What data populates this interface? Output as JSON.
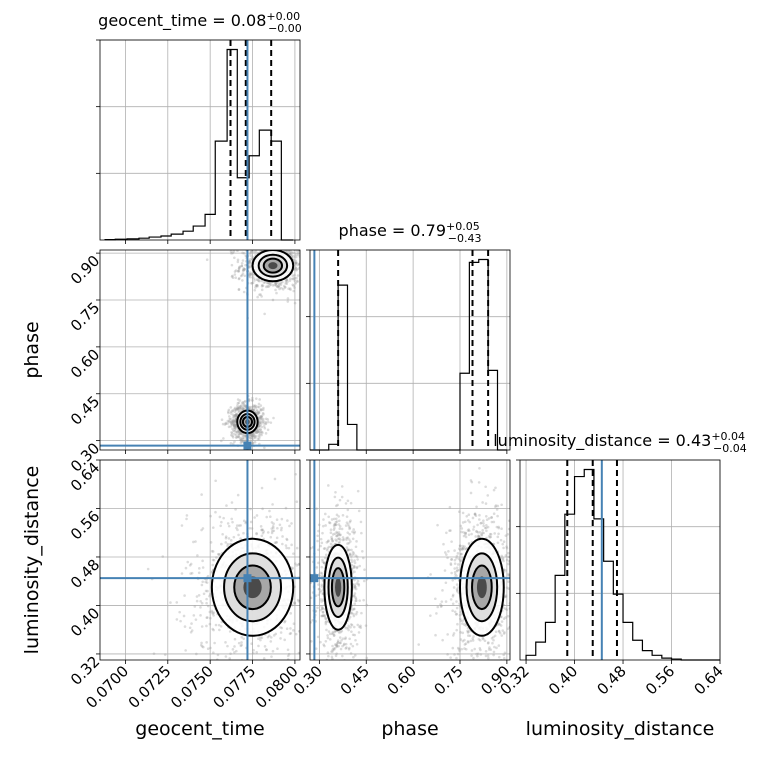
{
  "chart_data": {
    "type": "corner",
    "parameters": [
      "geocent_time",
      "phase",
      "luminosity_distance"
    ],
    "truths": {
      "geocent_time": 0.0772,
      "phase": 0.284,
      "luminosity_distance": 0.445
    },
    "marginals": [
      {
        "name": "geocent_time",
        "title": {
          "prefix": "geocent_time = 0.08",
          "plus": "+0.00",
          "minus": "−0.00"
        },
        "quantiles": [
          0.0762,
          0.0771,
          0.0786
        ],
        "bin_edges": [
          0.0688,
          0.0694,
          0.0701,
          0.0708,
          0.0714,
          0.0721,
          0.0727,
          0.0734,
          0.074,
          0.0747,
          0.0753,
          0.076,
          0.0766,
          0.0773,
          0.0779,
          0.0786,
          0.0792,
          0.0799
        ],
        "counts": [
          1,
          2,
          3,
          5,
          8,
          11,
          16,
          24,
          38,
          70,
          270,
          520,
          170,
          230,
          300,
          270,
          0
        ]
      },
      {
        "name": "phase",
        "title": {
          "prefix": "phase = 0.79",
          "plus": "+0.05",
          "minus": "−0.43"
        },
        "quantiles": [
          0.36,
          0.79,
          0.84
        ],
        "bin_edges": [
          0.27,
          0.3,
          0.33,
          0.36,
          0.39,
          0.42,
          0.45,
          0.48,
          0.51,
          0.54,
          0.57,
          0.6,
          0.63,
          0.66,
          0.69,
          0.72,
          0.75,
          0.78,
          0.81,
          0.84,
          0.87,
          0.9
        ],
        "counts": [
          0,
          0,
          10,
          290,
          45,
          0,
          0,
          0,
          0,
          0,
          0,
          0,
          0,
          0,
          0,
          0,
          135,
          330,
          335,
          140,
          0
        ]
      },
      {
        "name": "luminosity_distance",
        "title": {
          "prefix": "luminosity_distance = 0.43",
          "plus": "+0.04",
          "minus": "−0.04"
        },
        "quantiles": [
          0.388,
          0.43,
          0.47
        ],
        "bin_edges": [
          0.32,
          0.336,
          0.352,
          0.368,
          0.384,
          0.4,
          0.416,
          0.432,
          0.448,
          0.464,
          0.48,
          0.496,
          0.512,
          0.528,
          0.544,
          0.56,
          0.576,
          0.592,
          0.608,
          0.624,
          0.64
        ],
        "counts": [
          10,
          38,
          80,
          180,
          310,
          390,
          405,
          300,
          210,
          140,
          80,
          42,
          20,
          10,
          4,
          2,
          0,
          0,
          0,
          0
        ]
      }
    ],
    "axes": {
      "geocent_time": {
        "range": [
          0.0685,
          0.0803
        ],
        "ticks": [
          "0.0700",
          "0.0725",
          "0.0750",
          "0.0775",
          "0.0800"
        ]
      },
      "phase": {
        "range": [
          0.27,
          0.91
        ],
        "ticks": [
          "0.30",
          "0.45",
          "0.60",
          "0.75",
          "0.90"
        ]
      },
      "luminosity_distance": {
        "range": [
          0.31,
          0.64
        ],
        "ticks": [
          "0.32",
          "0.40",
          "0.48",
          "0.56",
          "0.64"
        ]
      }
    },
    "panels_2d": [
      {
        "x": "geocent_time",
        "y": "phase",
        "modes": [
          {
            "cx": 0.0787,
            "cy": 0.86,
            "sx": 0.0006,
            "sy": 0.025
          },
          {
            "cx": 0.0772,
            "cy": 0.36,
            "sx": 0.0003,
            "sy": 0.018
          }
        ]
      },
      {
        "x": "geocent_time",
        "y": "luminosity_distance",
        "modes": [
          {
            "cx": 0.0775,
            "cy": 0.43,
            "sx": 0.0012,
            "sy": 0.04
          }
        ]
      },
      {
        "x": "phase",
        "y": "luminosity_distance",
        "modes": [
          {
            "cx": 0.36,
            "cy": 0.43,
            "sx": 0.022,
            "sy": 0.035
          },
          {
            "cx": 0.82,
            "cy": 0.43,
            "sx": 0.035,
            "sy": 0.04
          }
        ]
      }
    ],
    "xlabel": {
      "geocent_time": "geocent_time",
      "phase": "phase",
      "luminosity_distance": "luminosity_distance"
    },
    "ylabel": {
      "phase": "phase",
      "luminosity_distance": "luminosity_distance"
    },
    "grid": true,
    "colors": {
      "truth": "#4682b4",
      "hist": "#000000",
      "scatter": "#9a9a9a"
    }
  }
}
